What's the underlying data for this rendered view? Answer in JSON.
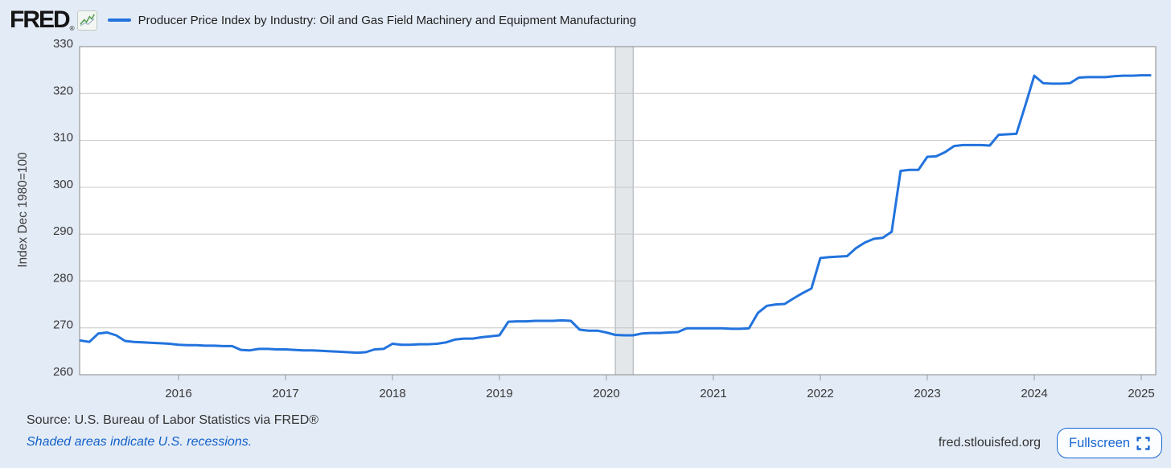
{
  "header": {
    "logo_text": "FRED",
    "logo_reg": "®",
    "series_title": "Producer Price Index by Industry: Oil and Gas Field Machinery and Equipment Manufacturing"
  },
  "footer": {
    "source": "Source: U.S. Bureau of Labor Statistics via FRED®",
    "recession_note": "Shaded areas indicate U.S. recessions.",
    "site": "fred.stlouisfed.org",
    "fullscreen_label": "Fullscreen"
  },
  "icons": {
    "fullscreen": "corner-brackets",
    "logo_chart": "green-sparkline-in-box"
  },
  "colors": {
    "background": "#e3ebf6",
    "plot_background": "#ffffff",
    "line": "#2273dd",
    "grid": "#c6c6c6",
    "frame": "#999999",
    "recession_fill": "#e3e7ea",
    "recession_edge": "#a6abb0",
    "axis_text": "#383838",
    "link_blue": "#1261c9",
    "button_blue": "#1766d1"
  },
  "chart_data": {
    "type": "line",
    "title": "Producer Price Index by Industry: Oil and Gas Field Machinery and Equipment Manufacturing",
    "y_axis_title": "Index Dec 1980=100",
    "ylim": [
      260,
      330
    ],
    "y_ticks": [
      330,
      320,
      310,
      300,
      290,
      280,
      270,
      260
    ],
    "x_ticks": [
      2016,
      2017,
      2018,
      2019,
      2020,
      2021,
      2022,
      2023,
      2024,
      2025
    ],
    "frequency": "monthly",
    "start": "2015-02",
    "end": "2025-02",
    "grid": true,
    "legend_position": "top",
    "recession_bands": [
      {
        "start": "2020-02",
        "end": "2020-04"
      }
    ],
    "values": [
      267.3,
      267.0,
      268.8,
      269.0,
      268.4,
      267.2,
      267.0,
      266.9,
      266.8,
      266.7,
      266.6,
      266.4,
      266.3,
      266.3,
      266.2,
      266.2,
      266.1,
      266.1,
      265.3,
      265.2,
      265.5,
      265.5,
      265.4,
      265.4,
      265.3,
      265.2,
      265.2,
      265.1,
      265.0,
      264.9,
      264.8,
      264.7,
      264.8,
      265.4,
      265.5,
      266.6,
      266.4,
      266.4,
      266.5,
      266.5,
      266.6,
      266.9,
      267.5,
      267.7,
      267.7,
      268.0,
      268.2,
      268.4,
      271.3,
      271.4,
      271.4,
      271.5,
      271.5,
      271.5,
      271.6,
      271.5,
      269.6,
      269.4,
      269.4,
      269.0,
      268.5,
      268.4,
      268.4,
      268.8,
      268.9,
      268.9,
      269.0,
      269.1,
      269.9,
      269.9,
      269.9,
      269.9,
      269.9,
      269.8,
      269.8,
      269.9,
      273.2,
      274.7,
      275.0,
      275.1,
      276.3,
      277.4,
      278.4,
      284.9,
      285.1,
      285.2,
      285.3,
      287.0,
      288.2,
      289.0,
      289.2,
      290.5,
      303.5,
      303.7,
      303.7,
      306.5,
      306.6,
      307.5,
      308.8,
      309.0,
      309.0,
      309.0,
      308.9,
      311.2,
      311.3,
      311.4,
      317.5,
      323.8,
      322.2,
      322.1,
      322.1,
      322.2,
      323.4,
      323.5,
      323.5,
      323.5,
      323.7,
      323.8,
      323.8,
      323.9,
      323.9
    ]
  }
}
